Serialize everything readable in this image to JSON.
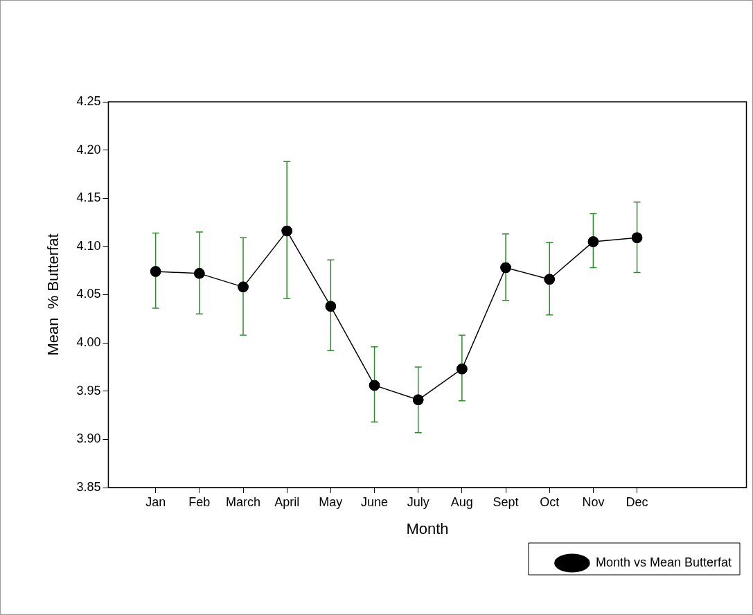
{
  "chart_data": {
    "type": "line",
    "xlabel": "Month",
    "ylabel": "Mean  % Butterfat",
    "categories": [
      "Jan",
      "Feb",
      "March",
      "April",
      "May",
      "June",
      "July",
      "Aug",
      "Sept",
      "Oct",
      "Nov",
      "Dec"
    ],
    "series": [
      {
        "name": "Month vs Mean Butterfat",
        "color": "#000000",
        "values": [
          4.074,
          4.072,
          4.058,
          4.116,
          4.038,
          3.956,
          3.941,
          3.973,
          4.078,
          4.066,
          4.105,
          4.109
        ],
        "errors": [
          [
            4.036,
            4.114
          ],
          [
            4.03,
            4.115
          ],
          [
            4.008,
            4.109
          ],
          [
            4.046,
            4.188
          ],
          [
            3.992,
            4.086
          ],
          [
            3.918,
            3.996
          ],
          [
            3.907,
            3.975
          ],
          [
            3.94,
            4.008
          ],
          [
            4.044,
            4.113
          ],
          [
            4.029,
            4.104
          ],
          [
            4.078,
            4.134
          ],
          [
            4.073,
            4.146
          ]
        ]
      }
    ],
    "ylim": [
      3.85,
      4.25
    ],
    "yticks": [
      {
        "value": 3.85,
        "label": "3.85"
      },
      {
        "value": 3.9,
        "label": "3.90"
      },
      {
        "value": 3.95,
        "label": "3.95"
      },
      {
        "value": 4,
        "label": "4.00"
      },
      {
        "value": 4.05,
        "label": "4.05"
      },
      {
        "value": 4.1,
        "label": "4.10"
      },
      {
        "value": 4.15,
        "label": "4.15"
      },
      {
        "value": 4.2,
        "label": "4.20"
      },
      {
        "value": 4.25,
        "label": "4.25"
      }
    ],
    "grid": false,
    "legend": "bottom right",
    "marker": "circle",
    "line_style": "solid"
  }
}
